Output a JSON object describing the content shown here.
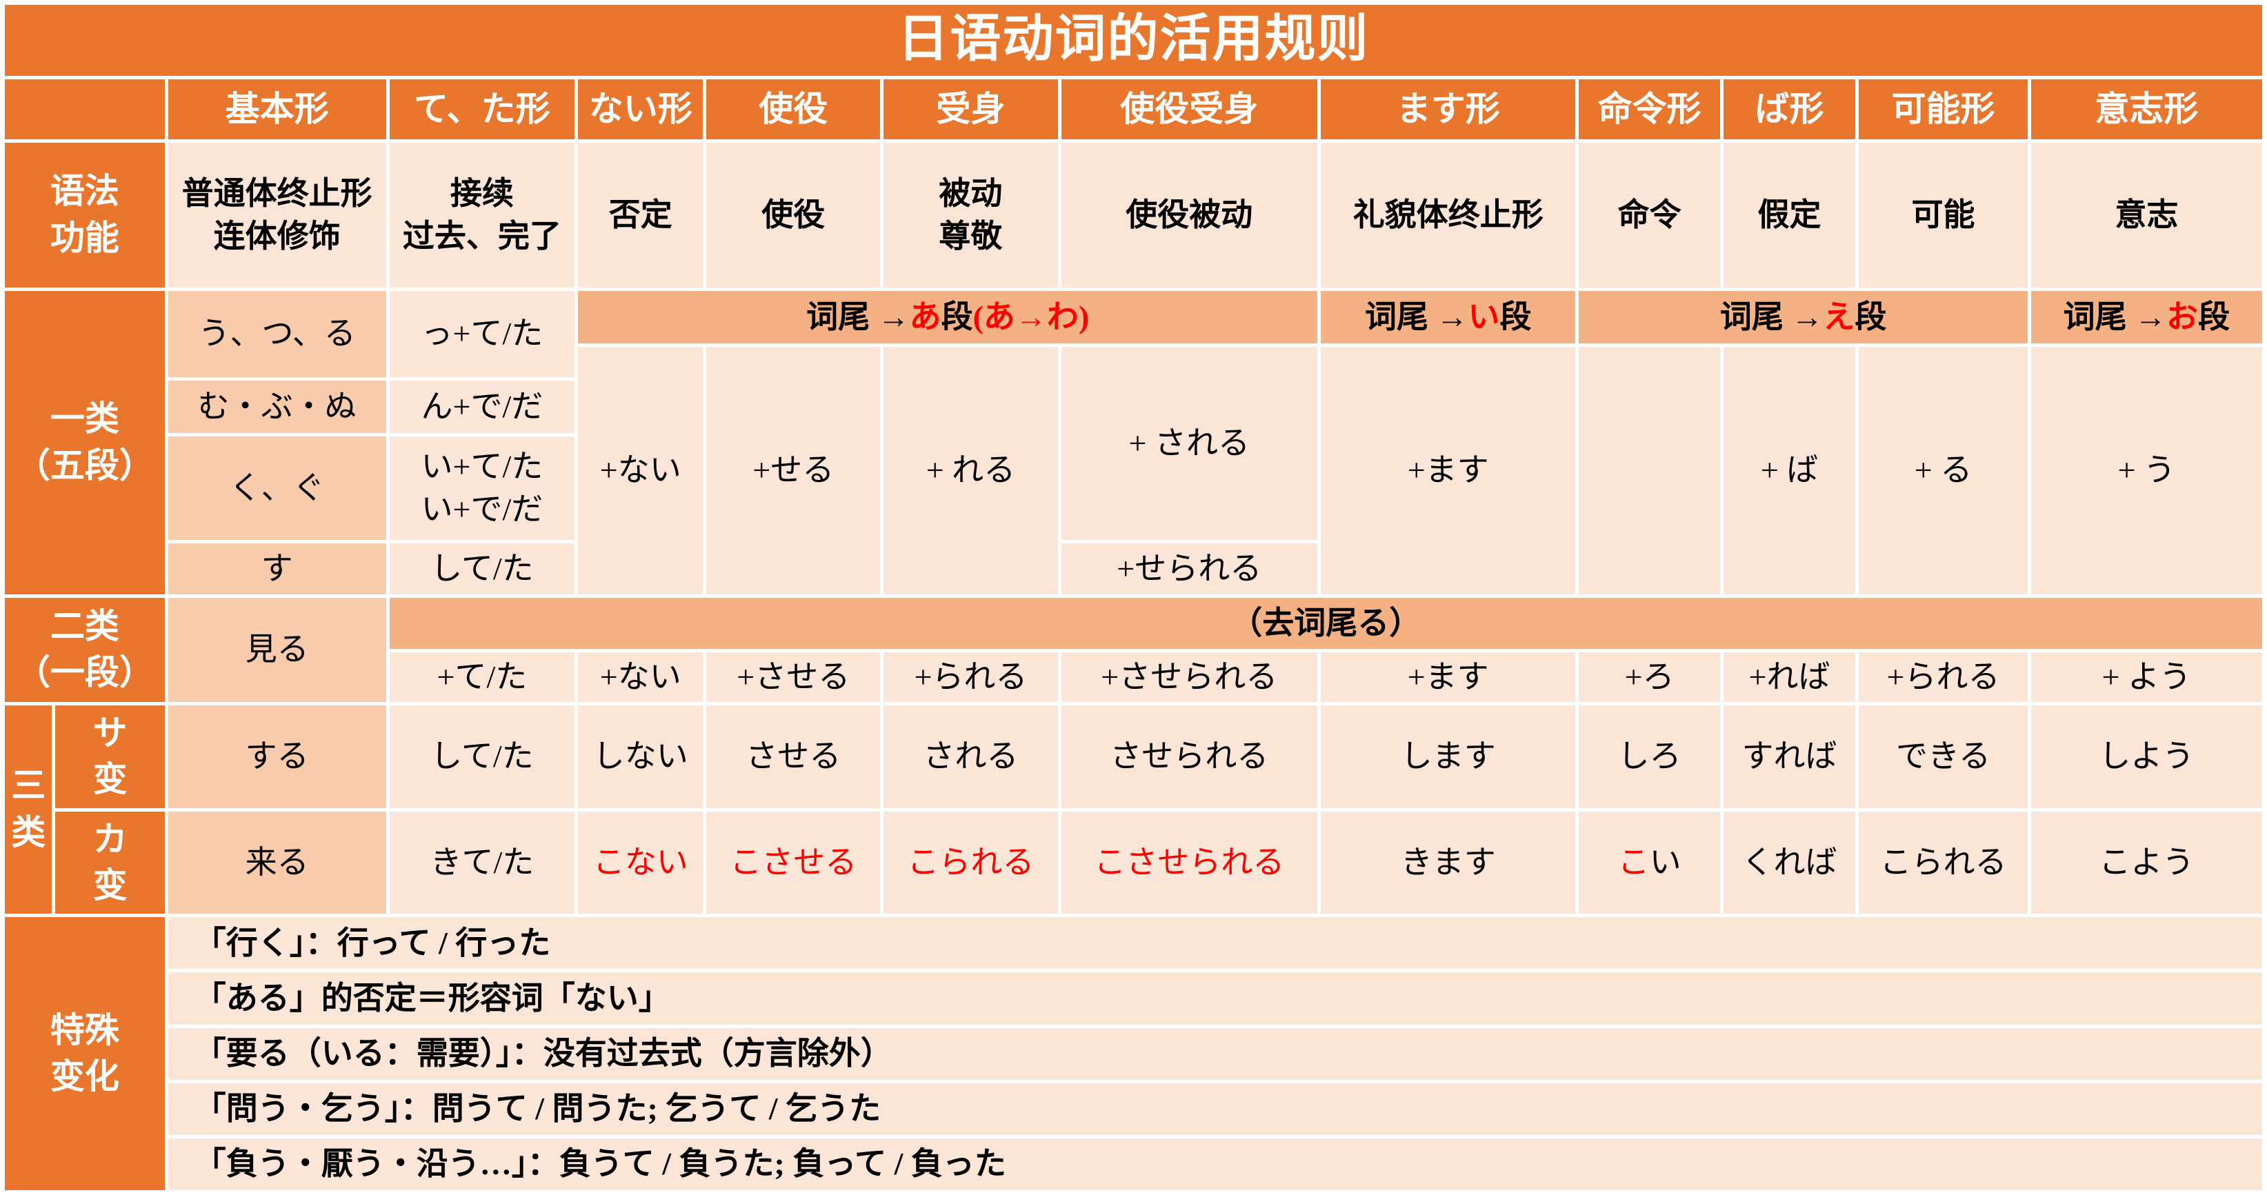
{
  "title": "日语动词的活用规则",
  "header": {
    "cols": [
      "基本形",
      "て、た形",
      "ない形",
      "使役",
      "受身",
      "使役受身",
      "ます形",
      "命令形",
      "ば形",
      "可能形",
      "意志形"
    ]
  },
  "grammar": {
    "label": "语法\n功能",
    "cells": [
      "普通体终止形\n连体修饰",
      "接续\n过去、完了",
      "否定",
      "使役",
      "被动\n尊敬",
      "使役被动",
      "礼貌体终止形",
      "命令",
      "假定",
      "可能",
      "意志"
    ]
  },
  "class1": {
    "label": "一类\n（五段）",
    "base": [
      "う、つ、る",
      "む・ぶ・ぬ",
      "く、ぐ",
      "す"
    ],
    "teta": [
      "っ+て/た",
      "ん+で/だ",
      "い+て/た\nい+で/だ",
      "して/た"
    ],
    "banners": {
      "a": {
        "prefix": "词尾 → ",
        "vowel": "あ",
        "dan": "段",
        "extra": "(あ→わ)"
      },
      "i": {
        "prefix": "词尾 → ",
        "vowel": "い",
        "dan": "段"
      },
      "e": {
        "prefix": "词尾 → ",
        "vowel": "え",
        "dan": "段"
      },
      "o": {
        "prefix": "词尾 → ",
        "vowel": "お",
        "dan": "段"
      }
    },
    "suffixes": {
      "nai": "+ない",
      "seru": "+せる",
      "reru": "+ れる",
      "sareru": "+ される",
      "serareru": "+せられる",
      "masu": "+ます",
      "ba": "+ ば",
      "ru": "+ る",
      "u": "+ う"
    }
  },
  "class2": {
    "label": "二类\n（一段）",
    "base": "見る",
    "banner": "（去词尾る）",
    "suffixes": [
      "+て/た",
      "+ない",
      "+させる",
      "+られる",
      "+させられる",
      "+ます",
      "+ろ",
      "+れば",
      "+られる",
      "+ よう"
    ]
  },
  "class3": {
    "label": "三\n类",
    "sa": {
      "label": "サ\n变",
      "base": "する",
      "forms": [
        "して/た",
        "しない",
        "させる",
        "される",
        "させられる",
        "します",
        "しろ",
        "すれば",
        "できる",
        "しよう"
      ]
    },
    "ka": {
      "label": "カ\n变",
      "base": "来る",
      "forms": [
        "きて/た",
        "こない",
        "こさせる",
        "こられる",
        "こさせられる",
        "きます",
        "",
        "くれば",
        "こられる",
        "こよう"
      ],
      "imperative": {
        "red": "こ",
        "black": "い"
      }
    }
  },
  "notes": {
    "label": "特殊\n变化",
    "items": [
      "「行く」：行って / 行った",
      "「ある」的否定＝形容词「ない」",
      "「要る（いる：需要）」：没有过去式（方言除外）",
      "「問う・乞う」：問うて / 問うた; 乞うて / 乞うた",
      "「負う・厭う・沿う…」：負うて / 負うた; 負って / 負った"
    ]
  },
  "colors": {
    "accent": "#E8762C",
    "banner": "#F4B183",
    "peach": "#F8CBAD",
    "light": "#FBE5D6",
    "highlight": "#FF0000"
  }
}
